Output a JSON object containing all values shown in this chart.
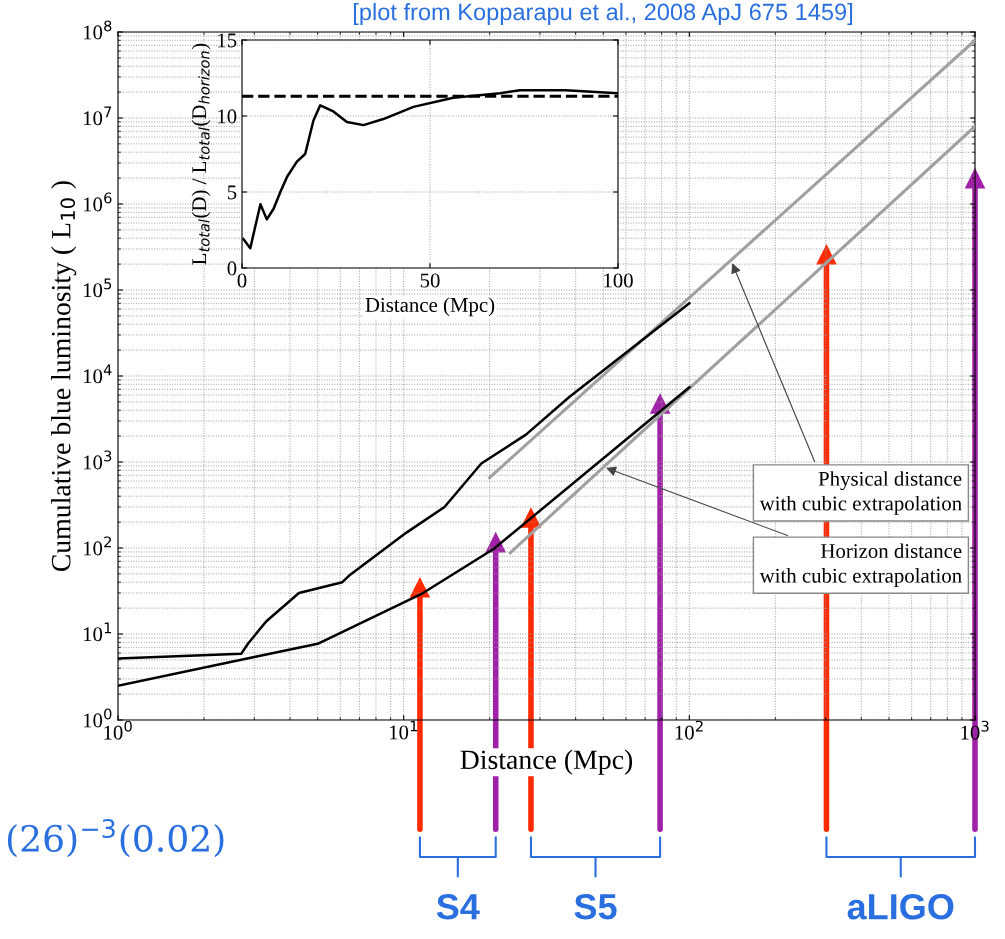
{
  "chart_data": [
    {
      "type": "line",
      "xlabel": "Distance (Mpc)",
      "ylabel": "Cumulative blue luminosity ( L$_{10}$ )",
      "log": "xy",
      "grid": true,
      "xlim": [
        1,
        1000
      ],
      "ylim": [
        1,
        100000000
      ],
      "xticks": [
        {
          "value": 1,
          "label": "10$^{0}$"
        },
        {
          "value": 10,
          "label": "10$^{1}$"
        },
        {
          "value": 100,
          "label": "10$^{2}$"
        },
        {
          "value": 1000,
          "label": "10$^{3}$"
        }
      ],
      "yticks": [
        {
          "value": 1,
          "label": "10$^{0}$"
        },
        {
          "value": 10,
          "label": "10$^{1}$"
        },
        {
          "value": 100,
          "label": "10$^{2}$"
        },
        {
          "value": 1000,
          "label": "10$^{3}$"
        },
        {
          "value": 10000,
          "label": "10$^{4}$"
        },
        {
          "value": 100000,
          "label": "10$^{5}$"
        },
        {
          "value": 1000000,
          "label": "10$^{6}$"
        },
        {
          "value": 10000000,
          "label": "10$^{7}$"
        },
        {
          "value": 100000000,
          "label": "10$^{8}$"
        }
      ],
      "series": [
        {
          "color": "#a0a0a0",
          "x": [
            20,
            1000
          ],
          "values": [
            660,
            80000000
          ]
        },
        {
          "color": "#a0a0a0",
          "x": [
            23.6,
            1000
          ],
          "values": [
            88,
            8000000
          ]
        },
        {
          "color": "#000000",
          "x": [
            1,
            2.7,
            2.85,
            3.3,
            4.3,
            6.1,
            6.5,
            10.2,
            13.9,
            18.7,
            26.8,
            38,
            100
          ],
          "values": [
            5.2,
            5.9,
            7.7,
            14,
            30,
            40,
            49,
            150,
            300,
            960,
            2080,
            5700,
            70000
          ]
        },
        {
          "color": "#000000",
          "x": [
            1,
            3.0,
            5.0,
            11.5,
            20.7,
            100
          ],
          "values": [
            2.5,
            5.4,
            7.7,
            29,
            98,
            7400
          ]
        },
        {
          "type": "lollipop",
          "marker": "triangle",
          "x": [
            11.4,
            21,
            27.9,
            79,
            302,
            1000
          ],
          "values": [
            35,
            117,
            226,
            4800,
            260000,
            2000000
          ],
          "colors": [
            "#ff2a00",
            "#a020a8",
            "#ff2a00",
            "#a020a8",
            "#ff2a00",
            "#a020a8"
          ]
        }
      ],
      "annotations": [
        "[plot from Kopparapu et al., 2008 ApJ 675 1459]",
        "(26)$^{−3}$(0.02)",
        {
          "text": "Physical distance\nwith cubic extrapolation",
          "x": 140,
          "y": 220000
        },
        {
          "text": "Horizon distance\nwith cubic extrapolation",
          "x": 50,
          "y": 880
        },
        "S4",
        "S5",
        "aLIGO"
      ]
    },
    {
      "type": "line",
      "xlabel": "Distance (Mpc)",
      "ylabel": "L$_{total}$(D) / L$_{total}$(D$_{horizon}$)",
      "grid": true,
      "xlim": [
        0,
        100
      ],
      "ylim": [
        0,
        15
      ],
      "xticks": [
        0,
        50,
        100
      ],
      "yticks": [
        0,
        5,
        10,
        15
      ],
      "series": [
        {
          "color": "#000000",
          "x": [
            0.4,
            2.2,
            4.9,
            6.6,
            8.4,
            10.2,
            12,
            14.6,
            16.8,
            19,
            20.8,
            24.3,
            27.9,
            32.3,
            37.6,
            45.6,
            56.2,
            68.6,
            73.9,
            86,
            100
          ],
          "values": [
            1.9,
            1.3,
            4.2,
            3.2,
            3.9,
            5.0,
            6.0,
            7.0,
            7.5,
            9.7,
            10.7,
            10.3,
            9.6,
            9.4,
            9.8,
            10.6,
            11.2,
            11.5,
            11.7,
            11.7,
            11.5
          ]
        }
      ],
      "ref_lines": [
        {
          "axis": "y",
          "value": 11.3,
          "color": "#000000",
          "line_style": "dashed"
        }
      ]
    }
  ]
}
